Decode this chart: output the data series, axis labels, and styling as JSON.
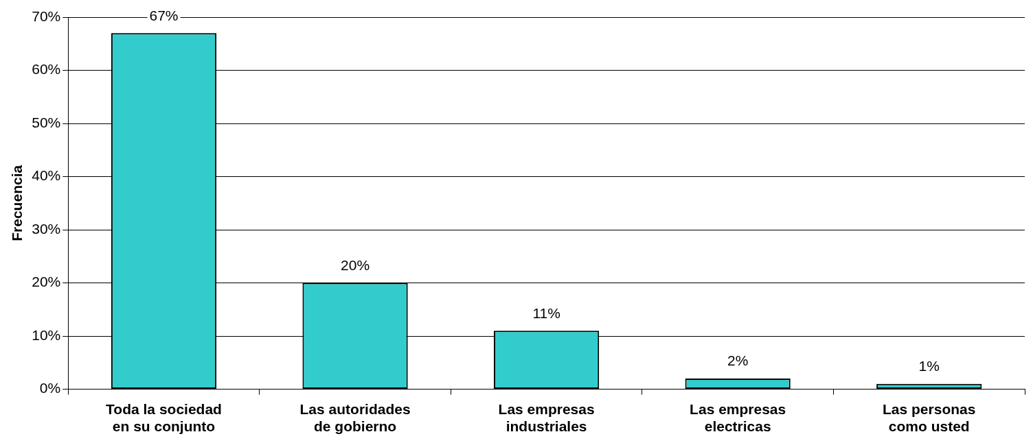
{
  "chart_data": {
    "type": "bar",
    "ylabel": "Frecuencia",
    "categories": [
      "Toda la sociedad en su conjunto",
      "Las autoridades de gobierno",
      "Las empresas industriales",
      "Las empresas electricas",
      "Las personas como usted"
    ],
    "values": [
      67,
      20,
      11,
      2,
      1
    ],
    "value_labels": [
      "67%",
      "20%",
      "11%",
      "2%",
      "1%"
    ],
    "color": "#33cccc",
    "ylim": [
      0,
      70
    ],
    "yticks": [
      {
        "value": 0,
        "label": "0%"
      },
      {
        "value": 10,
        "label": "10%"
      },
      {
        "value": 20,
        "label": "20%"
      },
      {
        "value": 30,
        "label": "30%"
      },
      {
        "value": 40,
        "label": "40%"
      },
      {
        "value": 50,
        "label": "50%"
      },
      {
        "value": 60,
        "label": "60%"
      },
      {
        "value": 70,
        "label": "70%"
      }
    ],
    "grid": "y",
    "legend": false
  }
}
